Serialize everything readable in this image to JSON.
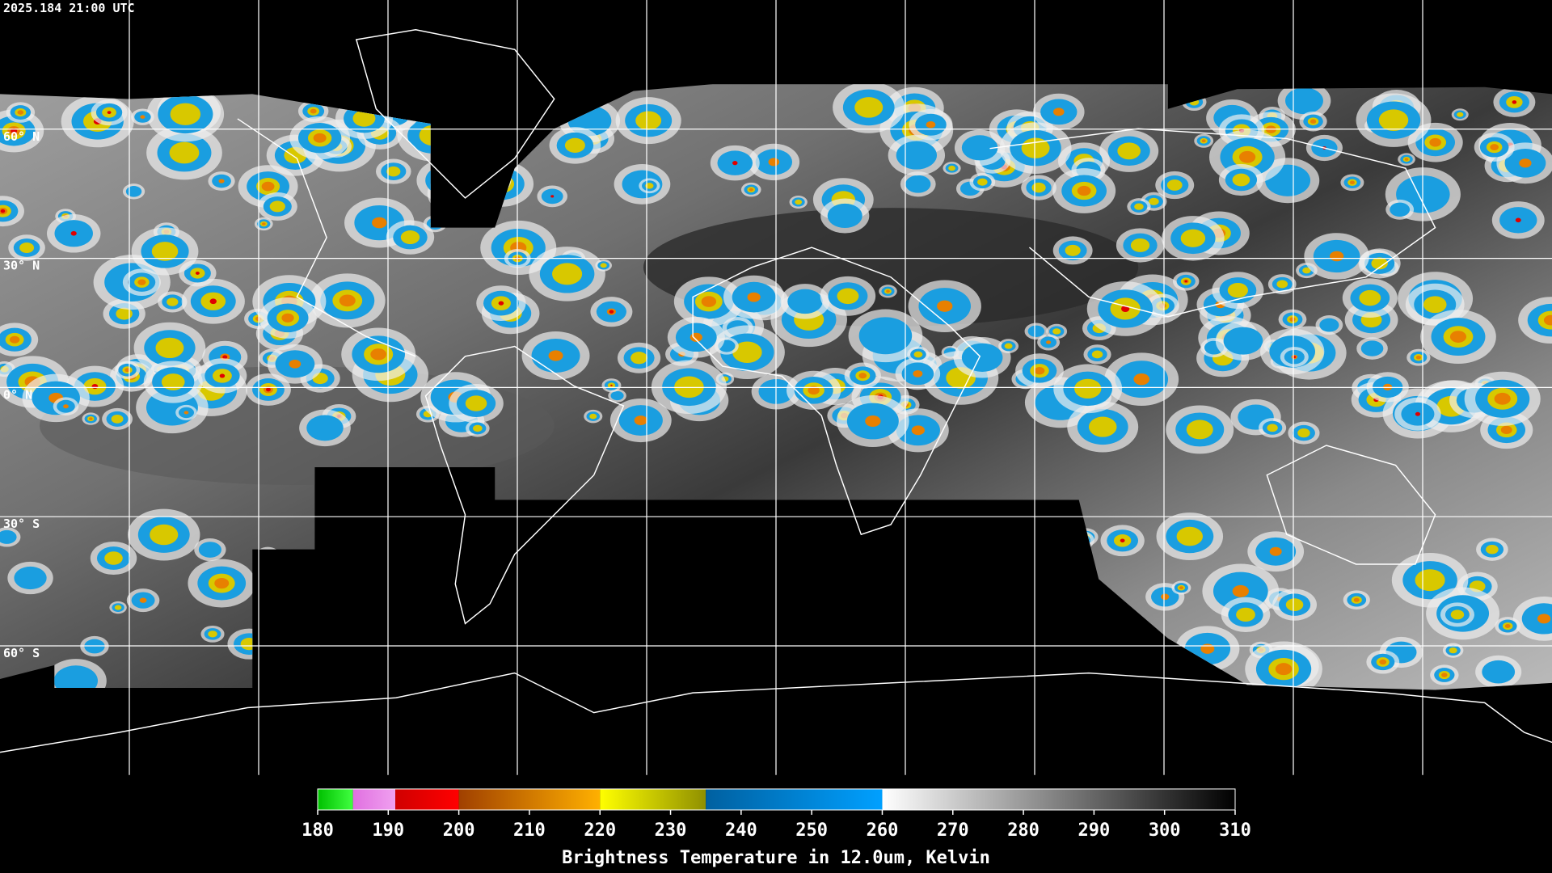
{
  "header": {
    "timestamp": "2025.184 21:00 UTC"
  },
  "map": {
    "lat_labels": [
      "60° N",
      "30° N",
      "0° N",
      "30° S",
      "60° S"
    ]
  },
  "colorbar": {
    "title": "Brightness Temperature in 12.0um, Kelvin",
    "range": [
      180,
      310
    ],
    "ticks": [
      180,
      190,
      200,
      210,
      220,
      230,
      240,
      250,
      260,
      270,
      280,
      290,
      300,
      310
    ],
    "segments": [
      {
        "from": 180,
        "to": 185,
        "colors": [
          "#00c000",
          "#40ff40"
        ]
      },
      {
        "from": 185,
        "to": 191,
        "colors": [
          "#e070e0",
          "#f0a0f0"
        ]
      },
      {
        "from": 191,
        "to": 200,
        "colors": [
          "#d00000",
          "#ff0000"
        ]
      },
      {
        "from": 200,
        "to": 220,
        "colors": [
          "#a04000",
          "#ffb000"
        ]
      },
      {
        "from": 220,
        "to": 235,
        "colors": [
          "#ffff00",
          "#909000"
        ]
      },
      {
        "from": 235,
        "to": 260,
        "colors": [
          "#0060a0",
          "#00a0ff"
        ]
      },
      {
        "from": 260,
        "to": 310,
        "colors": [
          "#ffffff",
          "#000000"
        ]
      }
    ]
  }
}
